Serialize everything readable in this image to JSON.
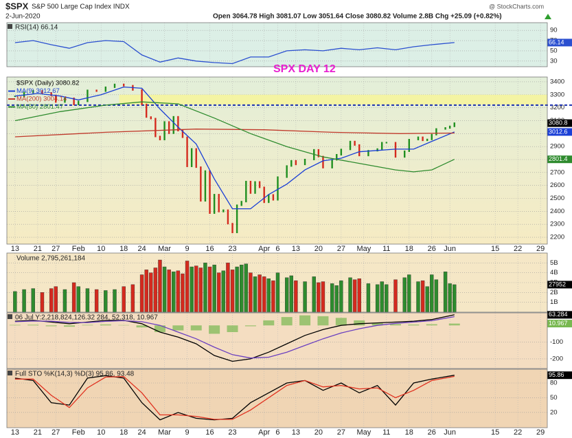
{
  "header": {
    "symbol": "$SPX",
    "name": "S&P 500 Large Cap Index INDX",
    "date": "2-Jun-2020",
    "quote": "Open 3064.78  High 3081.07  Low 3051.64  Close 3080.82  Volume 2.8B  Chg +25.09 (+0.82%)",
    "source": "@ StockCharts.com"
  },
  "chart_data": [
    {
      "type": "line",
      "title": "RSI(14) 66.14",
      "x": [
        0,
        4,
        8,
        12,
        16,
        20,
        24,
        28,
        32,
        36,
        40,
        44,
        48,
        52,
        56,
        60,
        64,
        68,
        72,
        76,
        80,
        84,
        88,
        92,
        97
      ],
      "ylim": [
        19,
        105
      ],
      "yticks": [
        90,
        70,
        50,
        30
      ],
      "series": [
        {
          "kind": "line",
          "color": "#2a4fd0",
          "tag": true,
          "values": [
            66,
            70,
            62,
            55,
            66,
            70,
            68,
            42,
            28,
            36,
            30,
            27,
            25,
            38,
            38,
            50,
            52,
            50,
            55,
            52,
            56,
            52,
            58,
            62,
            66.14
          ]
        }
      ]
    },
    {
      "type": "price",
      "annotation": "SPX DAY 12",
      "xlim": [
        -1.8,
        117.5
      ],
      "xticks": [
        {
          "value": 0,
          "label": "13"
        },
        {
          "value": 5,
          "label": "21"
        },
        {
          "value": 9,
          "label": "27"
        },
        {
          "value": 14,
          "label": "Feb"
        },
        {
          "value": 19,
          "label": "10"
        },
        {
          "value": 24,
          "label": "18"
        },
        {
          "value": 28,
          "label": "24"
        },
        {
          "value": 33,
          "label": "Mar"
        },
        {
          "value": 38,
          "label": "9"
        },
        {
          "value": 43,
          "label": "16"
        },
        {
          "value": 48,
          "label": "23"
        },
        {
          "value": 55,
          "label": "Apr"
        },
        {
          "value": 58,
          "label": "6"
        },
        {
          "value": 62,
          "label": "13"
        },
        {
          "value": 67,
          "label": "20"
        },
        {
          "value": 72,
          "label": "27"
        },
        {
          "value": 77,
          "label": "May"
        },
        {
          "value": 82,
          "label": "11"
        },
        {
          "value": 87,
          "label": "18"
        },
        {
          "value": 92,
          "label": "26"
        },
        {
          "value": 96,
          "label": "Jun"
        },
        {
          "value": 106,
          "label": "15"
        },
        {
          "value": 111,
          "label": "22"
        },
        {
          "value": 116,
          "label": "29"
        }
      ],
      "ylim": [
        2147,
        3437
      ],
      "yticks": [
        2200,
        2300,
        2400,
        2500,
        2600,
        2700,
        2800,
        2900,
        3000,
        3100,
        3200,
        3300,
        3400
      ],
      "zone": {
        "x": [
          23,
          117.5
        ],
        "y": [
          3225,
          3300
        ]
      },
      "hline": 3220,
      "x": [
        0,
        2,
        4,
        6,
        8,
        9,
        11,
        13,
        14,
        16,
        18,
        20,
        22,
        24,
        26,
        28,
        29,
        30,
        31,
        32,
        33,
        34,
        35,
        36,
        37,
        38,
        39,
        40,
        41,
        42,
        43,
        44,
        45,
        46,
        47,
        48,
        49,
        50,
        51,
        52,
        53,
        54,
        55,
        56,
        57,
        58,
        60,
        61,
        62,
        64,
        66,
        67,
        68,
        70,
        71,
        72,
        74,
        75,
        76,
        78,
        80,
        81,
        82,
        84,
        86,
        87,
        89,
        90,
        91,
        92,
        93,
        95,
        96,
        97
      ],
      "series": [
        {
          "name": "$SPX (Daily) 3080.82",
          "kind": "close",
          "color": "#000000",
          "colors": [
            "#1f8f1f",
            "#d42a1e"
          ],
          "last_label": "3080.8",
          "values": [
            3288,
            3317,
            3330,
            3315,
            3295,
            3244,
            3273,
            3225,
            3249,
            3334,
            3328,
            3358,
            3380,
            3370,
            3337,
            3226,
            3128,
            3116,
            2978,
            2954,
            3090,
            3003,
            3130,
            3023,
            2972,
            2747,
            2882,
            2741,
            2481,
            2711,
            2386,
            2529,
            2398,
            2409,
            2305,
            2237,
            2447,
            2475,
            2630,
            2541,
            2627,
            2585,
            2470,
            2527,
            2489,
            2664,
            2750,
            2790,
            2762,
            2800,
            2875,
            2823,
            2737,
            2798,
            2837,
            2878,
            2939,
            2912,
            2831,
            2868,
            2881,
            2930,
            2930,
            2820,
            2864,
            2954,
            2972,
            2948,
            2955,
            2992,
            3036,
            3044,
            3056,
            3080.82
          ]
        },
        {
          "name": "MA(9) 3012.67",
          "kind": "line",
          "color": "#1a3fd6",
          "last_label": "3012.6",
          "x": [
            0,
            5,
            10,
            14,
            19,
            24,
            28,
            32,
            36,
            40,
            44,
            48,
            52,
            56,
            60,
            64,
            68,
            72,
            76,
            80,
            84,
            88,
            92,
            97
          ],
          "values": [
            3290,
            3310,
            3290,
            3260,
            3300,
            3360,
            3350,
            3190,
            3050,
            2920,
            2650,
            2420,
            2420,
            2530,
            2610,
            2720,
            2790,
            2810,
            2860,
            2870,
            2880,
            2880,
            2940,
            3012.67
          ]
        },
        {
          "name": "MA(200) 3004.14",
          "kind": "line",
          "color": "#c0392b",
          "x": [
            0,
            20,
            40,
            55,
            70,
            85,
            97
          ],
          "values": [
            2975,
            3010,
            3035,
            3030,
            3010,
            3000,
            3004.14
          ]
        },
        {
          "name": "MA(50) 2801.47",
          "kind": "line",
          "color": "#2e8b2e",
          "last_label": "2801.4",
          "x": [
            0,
            10,
            20,
            28,
            36,
            44,
            52,
            60,
            68,
            76,
            84,
            88,
            92,
            97
          ],
          "values": [
            3100,
            3170,
            3220,
            3245,
            3230,
            3120,
            3000,
            2900,
            2820,
            2770,
            2720,
            2705,
            2720,
            2801.47
          ]
        }
      ]
    },
    {
      "type": "bar",
      "ylim": [
        0,
        6000000000
      ],
      "yticks": [
        {
          "value": 1000000000,
          "label": "1B"
        },
        {
          "value": 2000000000,
          "label": "2B"
        },
        {
          "value": 3000000000,
          "label": "3B"
        },
        {
          "value": 4000000000,
          "label": "4B"
        },
        {
          "value": 5000000000,
          "label": "5B"
        }
      ],
      "x": [
        0,
        2,
        4,
        6,
        8,
        9,
        11,
        13,
        14,
        16,
        18,
        20,
        22,
        24,
        26,
        28,
        29,
        30,
        31,
        32,
        33,
        34,
        35,
        36,
        37,
        38,
        39,
        40,
        41,
        42,
        43,
        44,
        45,
        46,
        47,
        48,
        49,
        50,
        51,
        52,
        53,
        54,
        55,
        56,
        57,
        58,
        60,
        61,
        62,
        64,
        66,
        67,
        68,
        70,
        71,
        72,
        74,
        75,
        76,
        78,
        80,
        81,
        82,
        84,
        86,
        87,
        89,
        90,
        91,
        92,
        93,
        95,
        96,
        97
      ],
      "series": [
        {
          "name": "Volume 2,795,261,184",
          "kind": "bar",
          "color": "#000000",
          "colors": [
            "#2e8b2e",
            "#d42a1e"
          ],
          "last_label": "27952",
          "values": [
            2100000000.0,
            2300000000.0,
            2400000000.0,
            2000000000.0,
            2400000000.0,
            2600000000.0,
            2300000000.0,
            3000000000.0,
            2600000000.0,
            2400000000.0,
            2300000000.0,
            2200000000.0,
            2300000000.0,
            2600000000.0,
            2800000000.0,
            3800000000.0,
            4300000000.0,
            4000000000.0,
            4500000000.0,
            5300000000.0,
            4600000000.0,
            4300000000.0,
            4100000000.0,
            4200000000.0,
            3900000000.0,
            5200000000.0,
            4600000000.0,
            4700000000.0,
            4500000000.0,
            5000000000.0,
            4600000000.0,
            4800000000.0,
            4000000000.0,
            4200000000.0,
            5000000000.0,
            4300000000.0,
            4600000000.0,
            4800000000.0,
            4900000000.0,
            4000000000.0,
            3600000000.0,
            3800000000.0,
            3600000000.0,
            3400000000.0,
            3200000000.0,
            4000000000.0,
            3500000000.0,
            3700000000.0,
            3200000000.0,
            3100000000.0,
            3600000000.0,
            3000000000.0,
            3100000000.0,
            2900000000.0,
            2700000000.0,
            3200000000.0,
            3500000000.0,
            3300000000.0,
            3400000000.0,
            2900000000.0,
            2800000000.0,
            3100000000.0,
            2800000000.0,
            3300000000.0,
            3500000000.0,
            3800000000.0,
            3100000000.0,
            3200000000.0,
            2600000000.0,
            3800000000.0,
            3300000000.0,
            4100000000.0,
            2900000000.0,
            2795261184
          ]
        }
      ]
    },
    {
      "type": "macd",
      "title": "06 Jul Y:2,218,824,126.32 284, 52.318, 10.967",
      "x": [
        0,
        4,
        8,
        12,
        16,
        20,
        24,
        28,
        32,
        36,
        40,
        44,
        48,
        52,
        56,
        60,
        64,
        68,
        72,
        76,
        80,
        84,
        88,
        92,
        97
      ],
      "ylim": [
        -258,
        75
      ],
      "yticks": [
        -100,
        -200
      ],
      "series": [
        {
          "kind": "hist",
          "color": "#78b850",
          "tag": true,
          "values": [
            3,
            4,
            -5,
            -8,
            3,
            6,
            2,
            -12,
            -40,
            -30,
            -30,
            -50,
            -40,
            -5,
            30,
            50,
            60,
            55,
            45,
            30,
            15,
            8,
            5,
            7,
            10.967
          ]
        },
        {
          "kind": "line",
          "color": "#000000",
          "tag": true,
          "values": [
            25,
            30,
            20,
            10,
            20,
            30,
            30,
            10,
            -40,
            -70,
            -110,
            -180,
            -215,
            -200,
            -160,
            -110,
            -60,
            -25,
            0,
            10,
            15,
            20,
            25,
            35,
            63.284
          ]
        },
        {
          "kind": "line",
          "color": "#6a3fc0",
          "values": [
            22,
            26,
            25,
            18,
            17,
            24,
            28,
            22,
            0,
            -40,
            -80,
            -130,
            -175,
            -195,
            -190,
            -160,
            -120,
            -80,
            -45,
            -20,
            0,
            12,
            20,
            28,
            52.318
          ]
        }
      ]
    },
    {
      "type": "line",
      "title": "Full STO %K(14,3) %D(3) 95.86, 93.48",
      "x": [
        0,
        4,
        8,
        12,
        16,
        20,
        24,
        28,
        32,
        36,
        40,
        44,
        48,
        52,
        56,
        60,
        64,
        68,
        72,
        76,
        80,
        84,
        88,
        92,
        97
      ],
      "ylim": [
        -11,
        108
      ],
      "yticks": [
        80,
        50,
        20
      ],
      "series": [
        {
          "kind": "line",
          "color": "#000000",
          "tag": true,
          "values": [
            90,
            85,
            40,
            35,
            90,
            95,
            90,
            40,
            5,
            20,
            8,
            5,
            8,
            40,
            60,
            80,
            85,
            65,
            80,
            60,
            75,
            35,
            80,
            88,
            95.86
          ]
        },
        {
          "kind": "line",
          "color": "#e0301e",
          "values": [
            88,
            88,
            55,
            30,
            70,
            92,
            93,
            60,
            15,
            15,
            12,
            6,
            6,
            25,
            50,
            75,
            85,
            72,
            75,
            68,
            70,
            50,
            65,
            85,
            93.48
          ]
        }
      ]
    }
  ]
}
